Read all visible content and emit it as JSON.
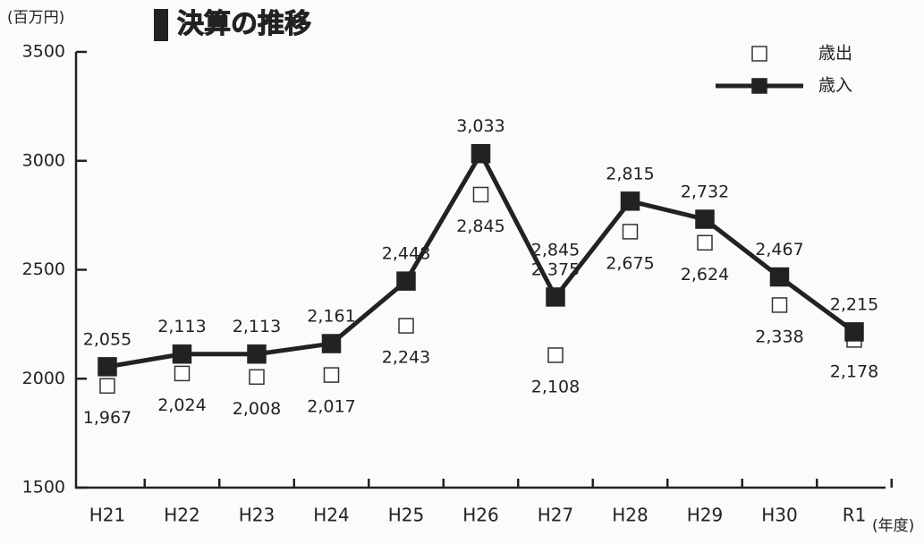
{
  "chart_data": {
    "type": "line",
    "title": "決算の推移",
    "y_unit": "(百万円)",
    "x_unit": "(年度)",
    "categories": [
      "H21",
      "H22",
      "H23",
      "H24",
      "H25",
      "H26",
      "H27",
      "H28",
      "H29",
      "H30",
      "R1"
    ],
    "series": [
      {
        "name": "歳出",
        "color": "#333333",
        "marker": "open-square",
        "values": [
          1967,
          2024,
          2008,
          2017,
          2243,
          2845,
          2108,
          2675,
          2624,
          2338,
          2178
        ],
        "value_labels": [
          "1,967",
          "2,024",
          "2,008",
          "2,017",
          "2,243",
          "2,845",
          "2,108",
          "2,675",
          "2,624",
          "2,338",
          "2,178"
        ]
      },
      {
        "name": "歳入",
        "color": "#222222",
        "marker": "filled-square",
        "values": [
          2055,
          2113,
          2113,
          2161,
          2448,
          3033,
          2375,
          2815,
          2732,
          2467,
          2215
        ],
        "value_labels": [
          "2,055",
          "2,113",
          "2,113",
          "2,161",
          "2,448",
          "3,033",
          "2,375",
          "2,815",
          "2,732",
          "2,467",
          "2,215"
        ]
      }
    ],
    "annotations": [
      "2,845"
    ],
    "ylim": [
      1500,
      3500
    ],
    "yticks": [
      1500,
      2000,
      2500,
      3000,
      3500
    ],
    "legend": "top-right"
  }
}
